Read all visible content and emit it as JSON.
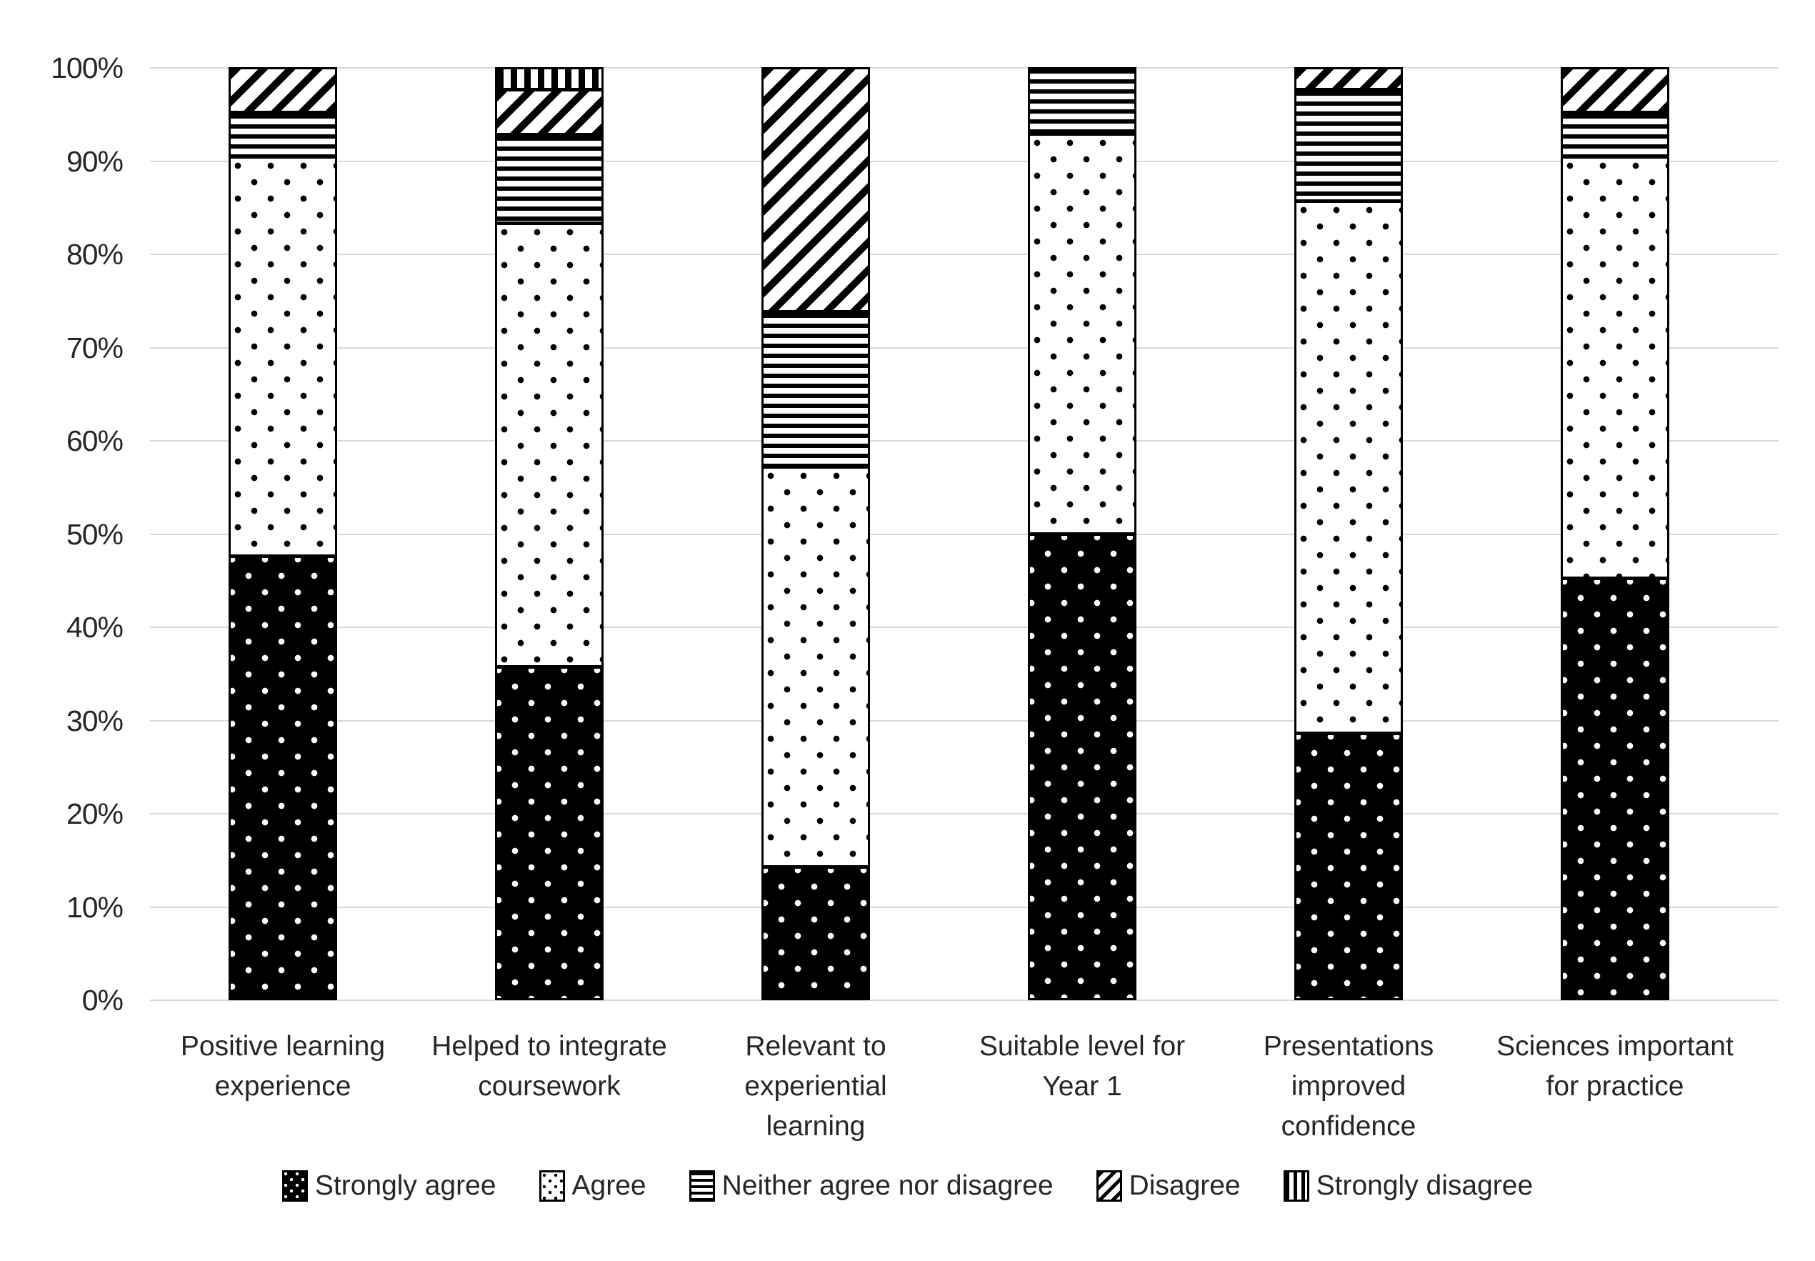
{
  "chart_data": {
    "type": "bar",
    "subtype": "stacked-100-percent",
    "orientation": "vertical",
    "grid": true,
    "categories": [
      "Positive learning experience",
      "Helped to integrate coursework",
      "Relevant to experiential learning",
      "Suitable level for Year 1",
      "Presentations improved confidence",
      "Sciences important for practice"
    ],
    "category_label_lines": [
      [
        "Positive learning",
        "experience"
      ],
      [
        "Helped to integrate",
        "coursework"
      ],
      [
        "Relevant to",
        "experiential",
        "learning"
      ],
      [
        "Suitable level for",
        "Year 1"
      ],
      [
        "Presentations",
        "improved",
        "confidence"
      ],
      [
        "Sciences important",
        "for practice"
      ]
    ],
    "series": [
      {
        "name": "Strongly agree",
        "pattern": "dots-white-on-black",
        "values": [
          47.6,
          35.7,
          14.3,
          50.0,
          28.6,
          45.2
        ]
      },
      {
        "name": "Agree",
        "pattern": "dots-black-on-white",
        "values": [
          42.9,
          47.6,
          42.9,
          42.9,
          57.1,
          45.2
        ]
      },
      {
        "name": "Neither agree nor disagree",
        "pattern": "horizontal-stripes",
        "values": [
          4.8,
          9.5,
          16.7,
          7.1,
          11.9,
          4.8
        ]
      },
      {
        "name": "Disagree",
        "pattern": "diagonal-stripes",
        "values": [
          4.8,
          4.8,
          26.2,
          0.0,
          2.4,
          4.8
        ]
      },
      {
        "name": "Strongly disagree",
        "pattern": "vertical-stripes",
        "values": [
          0.0,
          2.4,
          0.0,
          0.0,
          0.0,
          0.0
        ]
      }
    ],
    "y_axis": {
      "min": 0,
      "max": 100,
      "tick_step": 10,
      "tick_labels": [
        "0%",
        "10%",
        "20%",
        "30%",
        "40%",
        "50%",
        "60%",
        "70%",
        "80%",
        "90%",
        "100%"
      ]
    },
    "legend": {
      "position": "bottom",
      "entries": [
        "Strongly agree",
        "Agree",
        "Neither agree nor disagree",
        "Disagree",
        "Strongly disagree"
      ]
    }
  },
  "colors": {
    "background": "#ffffff",
    "foreground": "#000000",
    "text": "#262626",
    "gridline": "#d9d9d9"
  }
}
